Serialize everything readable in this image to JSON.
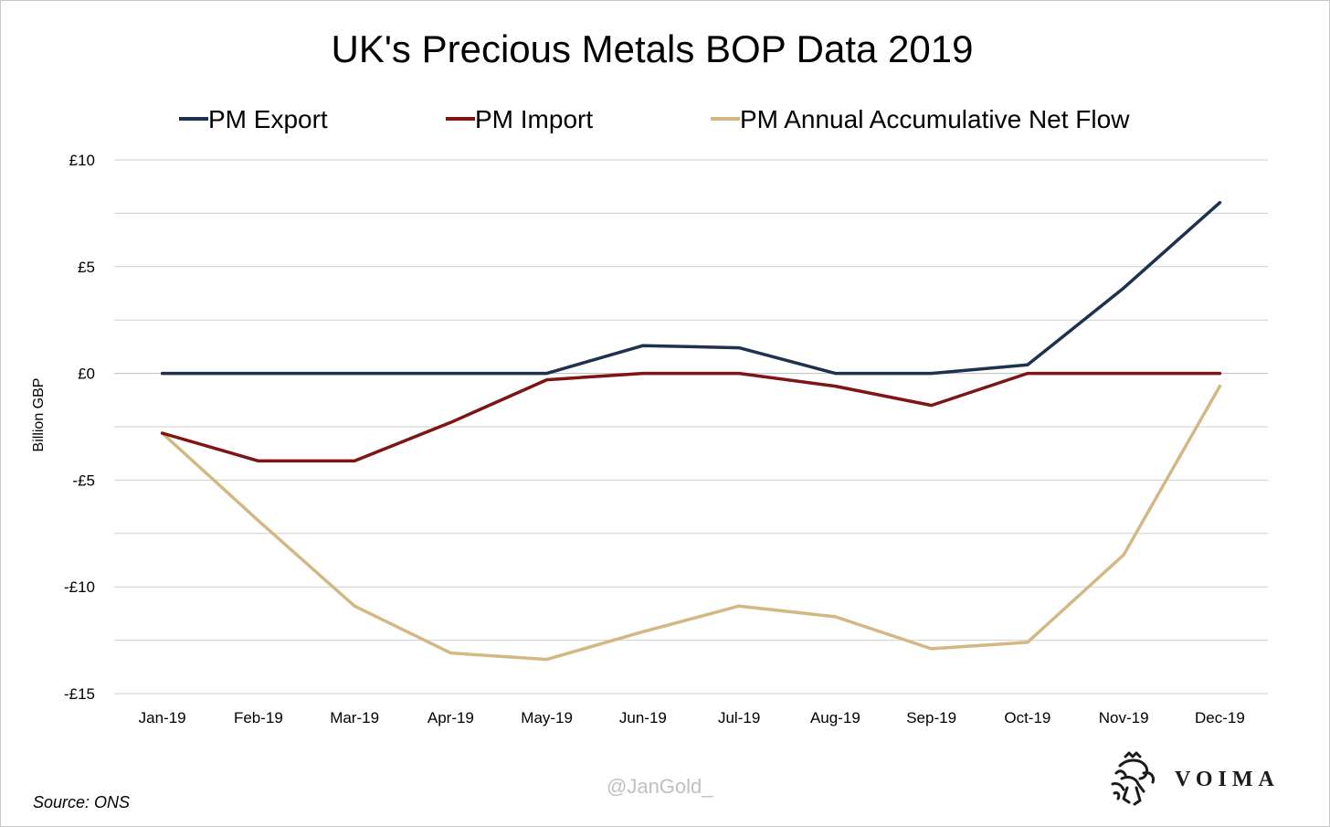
{
  "chart_data": {
    "type": "line",
    "title": "UK's Precious Metals BOP Data 2019",
    "ylabel": "Billion GBP",
    "xlabel": "",
    "categories": [
      "Jan-19",
      "Feb-19",
      "Mar-19",
      "Apr-19",
      "May-19",
      "Jun-19",
      "Jul-19",
      "Aug-19",
      "Sep-19",
      "Oct-19",
      "Nov-19",
      "Dec-19"
    ],
    "ylim": [
      -15,
      10
    ],
    "yticks": [
      10,
      5,
      0,
      -5,
      -10,
      -15
    ],
    "ytick_labels": [
      "£10",
      "£5",
      "£0",
      "-£5",
      "-£10",
      "-£15"
    ],
    "grid": true,
    "legend_position": "top",
    "series": [
      {
        "name": "PM Export",
        "color": "#1f3150",
        "values": [
          0,
          0,
          0,
          0,
          0,
          1.3,
          1.2,
          0,
          0,
          0.4,
          4.0,
          8.0
        ]
      },
      {
        "name": "PM Import",
        "color": "#7f1512",
        "values": [
          -2.8,
          -4.1,
          -4.1,
          -2.3,
          -0.3,
          0,
          0,
          -0.6,
          -1.5,
          0,
          0,
          0
        ]
      },
      {
        "name": "PM Annual Accumulative Net Flow",
        "color": "#d4b883",
        "values": [
          -2.8,
          -6.9,
          -10.9,
          -13.1,
          -13.4,
          -12.1,
          -10.9,
          -11.4,
          -12.9,
          -12.6,
          -8.5,
          -0.6
        ]
      }
    ]
  },
  "footer": {
    "source": "Source: ONS",
    "watermark": "@JanGold_",
    "brand": "VOIMA",
    "logo_icon": "lion-crest-icon"
  }
}
